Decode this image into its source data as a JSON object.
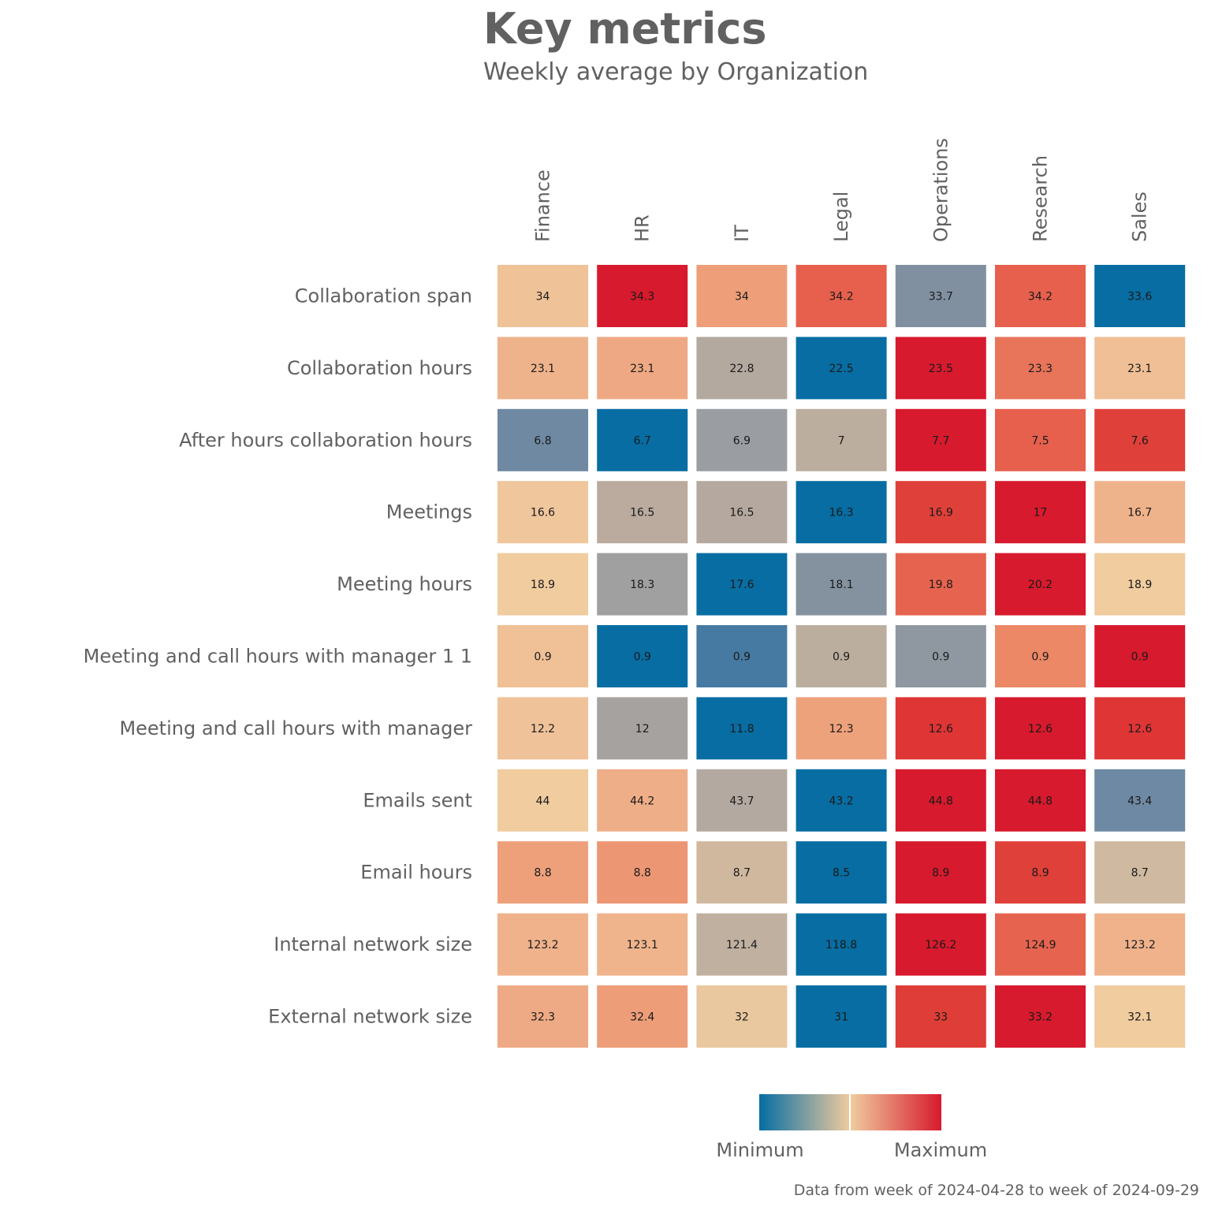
{
  "chart_data": {
    "type": "heatmap",
    "title": "Key metrics",
    "subtitle": "Weekly average by Organization",
    "caption": "Data from week of 2024-04-28 to week of 2024-09-29",
    "columns": [
      "Finance",
      "HR",
      "IT",
      "Legal",
      "Operations",
      "Research",
      "Sales"
    ],
    "rows": [
      "Collaboration span",
      "Collaboration hours",
      "After hours collaboration hours",
      "Meetings",
      "Meeting hours",
      "Meeting and call hours with manager 1 1",
      "Meeting and call hours with manager",
      "Emails sent",
      "Email hours",
      "Internal network size",
      "External network size"
    ],
    "values": [
      [
        34,
        34.3,
        34,
        34.2,
        33.7,
        34.2,
        33.6
      ],
      [
        23.1,
        23.1,
        22.8,
        22.5,
        23.5,
        23.3,
        23.1
      ],
      [
        6.8,
        6.7,
        6.9,
        7,
        7.7,
        7.5,
        7.6
      ],
      [
        16.6,
        16.5,
        16.5,
        16.3,
        16.9,
        17,
        16.7
      ],
      [
        18.9,
        18.3,
        17.6,
        18.1,
        19.8,
        20.2,
        18.9
      ],
      [
        0.9,
        0.9,
        0.9,
        0.9,
        0.9,
        0.9,
        0.9
      ],
      [
        12.2,
        12,
        11.8,
        12.3,
        12.6,
        12.6,
        12.6
      ],
      [
        44,
        44.2,
        43.7,
        43.2,
        44.8,
        44.8,
        43.4
      ],
      [
        8.8,
        8.8,
        8.7,
        8.5,
        8.9,
        8.9,
        8.7
      ],
      [
        123.2,
        123.1,
        121.4,
        118.8,
        126.2,
        124.9,
        123.2
      ],
      [
        32.3,
        32.4,
        32,
        31,
        33,
        33.2,
        32.1
      ]
    ],
    "cell_labels": [
      [
        "34",
        "34.3",
        "34",
        "34.2",
        "33.7",
        "34.2",
        "33.6"
      ],
      [
        "23.1",
        "23.1",
        "22.8",
        "22.5",
        "23.5",
        "23.3",
        "23.1"
      ],
      [
        "6.8",
        "6.7",
        "6.9",
        "7",
        "7.7",
        "7.5",
        "7.6"
      ],
      [
        "16.6",
        "16.5",
        "16.5",
        "16.3",
        "16.9",
        "17",
        "16.7"
      ],
      [
        "18.9",
        "18.3",
        "17.6",
        "18.1",
        "19.8",
        "20.2",
        "18.9"
      ],
      [
        "0.9",
        "0.9",
        "0.9",
        "0.9",
        "0.9",
        "0.9",
        "0.9"
      ],
      [
        "12.2",
        "12",
        "11.8",
        "12.3",
        "12.6",
        "12.6",
        "12.6"
      ],
      [
        "44",
        "44.2",
        "43.7",
        "43.2",
        "44.8",
        "44.8",
        "43.4"
      ],
      [
        "8.8",
        "8.8",
        "8.7",
        "8.5",
        "8.9",
        "8.9",
        "8.7"
      ],
      [
        "123.2",
        "123.1",
        "121.4",
        "118.8",
        "126.2",
        "124.9",
        "123.2"
      ],
      [
        "32.3",
        "32.4",
        "32",
        "31",
        "33",
        "33.2",
        "32.1"
      ]
    ],
    "cell_colors": [
      [
        "#f0c298",
        "#d71a2d",
        "#ee9f7a",
        "#e6604d",
        "#8090a0",
        "#e6604d",
        "#076da2"
      ],
      [
        "#efb38c",
        "#eea984",
        "#b3a99f",
        "#076da2",
        "#d71a2d",
        "#e8745a",
        "#f0bf96"
      ],
      [
        "#6e89a1",
        "#076da2",
        "#9a9da2",
        "#bcae9f",
        "#d71a2d",
        "#e6604d",
        "#df4039"
      ],
      [
        "#f0c69c",
        "#baab9e",
        "#b5a99f",
        "#076da2",
        "#df4039",
        "#d71a2d",
        "#efb38c"
      ],
      [
        "#f0cc9f",
        "#a0a0a0",
        "#076da2",
        "#8492a0",
        "#e6644f",
        "#d71a2d",
        "#f0cc9f"
      ],
      [
        "#f0c096",
        "#076da2",
        "#467aa2",
        "#bbae9f",
        "#8f98a0",
        "#ec8865",
        "#d71a2d"
      ],
      [
        "#f0c299",
        "#a6a29f",
        "#076da2",
        "#eea27c",
        "#df3535",
        "#d71a2d",
        "#df3535"
      ],
      [
        "#f0cc9f",
        "#eeae88",
        "#b3a9a1",
        "#076da2",
        "#d71a2d",
        "#d71a2d",
        "#6e89a3"
      ],
      [
        "#eda07a",
        "#ed9673",
        "#d0b89f",
        "#076da2",
        "#d71a2d",
        "#df4039",
        "#cfb9a0"
      ],
      [
        "#efb28b",
        "#f0b48c",
        "#c0b0a0",
        "#076da2",
        "#d71a2d",
        "#e6644f",
        "#efb28b"
      ],
      [
        "#eeaa84",
        "#ed9e79",
        "#e9c89f",
        "#076da2",
        "#df3d37",
        "#d71a2d",
        "#f0cc9f"
      ]
    ],
    "legend": {
      "min_label": "Minimum",
      "max_label": "Maximum",
      "colors": [
        "#076da2",
        "#f0cc9f",
        "#d71a2d"
      ],
      "placement": "bottom"
    }
  }
}
